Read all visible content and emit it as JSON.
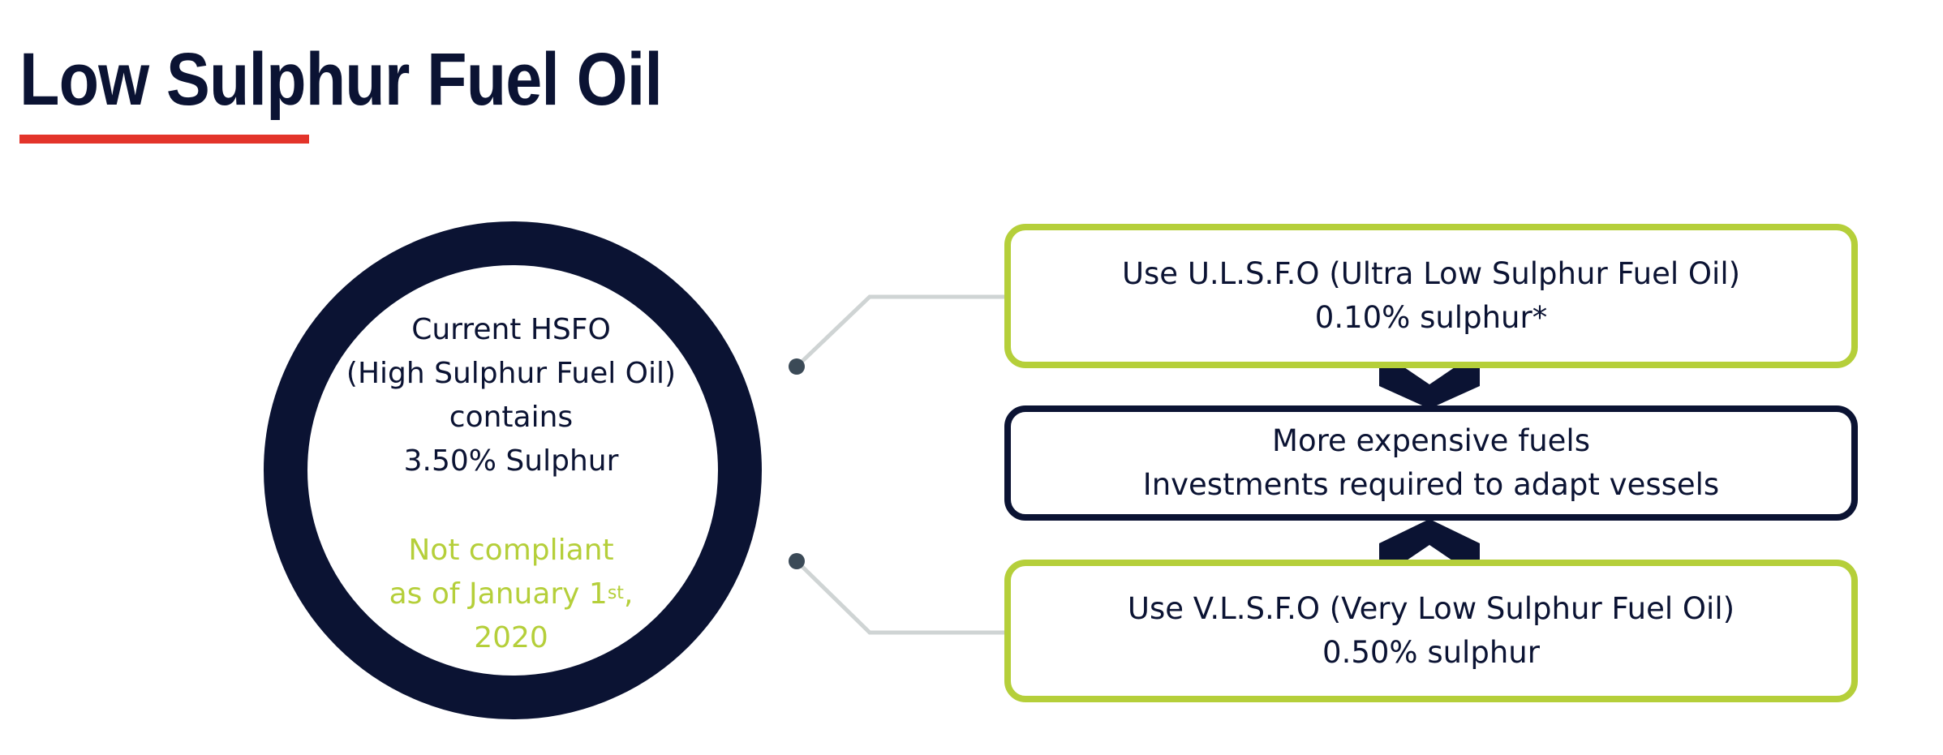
{
  "title": "Low Sulphur Fuel Oil",
  "colors": {
    "navy": "#0b1333",
    "green": "#b5cf3a",
    "red": "#e3342a",
    "connector": "#cfd4d4",
    "dot": "#3b4a57"
  },
  "circle": {
    "lines": [
      "Current HSFO",
      "(High Sulphur Fuel Oil)",
      "contains",
      "3.50% Sulphur"
    ],
    "note": {
      "line1": "Not compliant",
      "line2_main": "as of January 1",
      "line2_sup": "st",
      "line2_end": ",",
      "line3": "2020"
    }
  },
  "boxes": {
    "top": {
      "line1": "Use U.L.S.F.O (Ultra Low Sulphur Fuel Oil)",
      "line2": "0.10% sulphur*"
    },
    "middle": {
      "line1": "More expensive fuels",
      "line2": "Investments required to adapt vessels"
    },
    "bottom": {
      "line1": "Use V.L.S.F.O (Very Low Sulphur Fuel Oil)",
      "line2": "0.50% sulphur"
    }
  }
}
